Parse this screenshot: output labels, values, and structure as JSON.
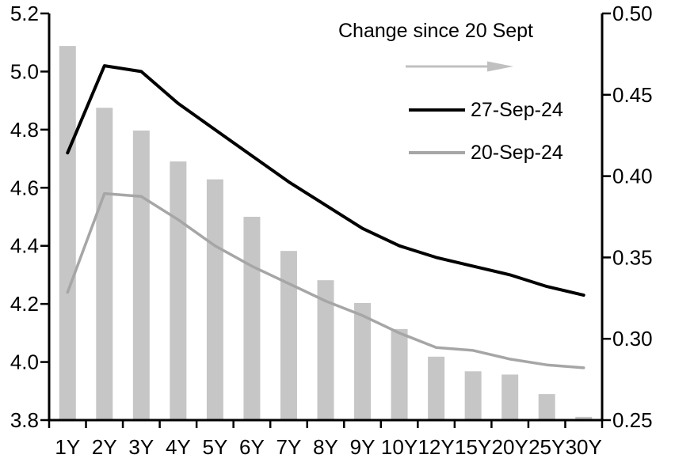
{
  "chart_data": {
    "type": "combo",
    "description": "Yield curve levels (lines, left axis, %) and change since 20 Sept (bars, right axis)",
    "categories": [
      "1Y",
      "2Y",
      "3Y",
      "4Y",
      "5Y",
      "6Y",
      "7Y",
      "8Y",
      "9Y",
      "10Y",
      "12Y",
      "15Y",
      "20Y",
      "25Y",
      "30Y"
    ],
    "series": [
      {
        "name": "27-Sep-24",
        "type": "line",
        "axis": "left",
        "color": "#000000",
        "values": [
          4.72,
          5.02,
          5.0,
          4.89,
          4.8,
          4.71,
          4.62,
          4.54,
          4.46,
          4.4,
          4.36,
          4.33,
          4.3,
          4.26,
          4.23
        ]
      },
      {
        "name": "20-Sep-24",
        "type": "line",
        "axis": "left",
        "color": "#A6A6A6",
        "values": [
          4.24,
          4.58,
          4.57,
          4.49,
          4.4,
          4.33,
          4.27,
          4.21,
          4.16,
          4.1,
          4.05,
          4.04,
          4.01,
          3.99,
          3.98
        ]
      },
      {
        "name": "Change since 20 Sept",
        "type": "bar",
        "axis": "right",
        "color": "#C6C6C6",
        "values": [
          0.48,
          0.442,
          0.428,
          0.409,
          0.398,
          0.375,
          0.354,
          0.336,
          0.322,
          0.306,
          0.289,
          0.28,
          0.278,
          0.266,
          0.252
        ]
      }
    ],
    "left_axis": {
      "min": 3.8,
      "max": 5.2,
      "tick_step": 0.2,
      "tick_labels": [
        "5.2",
        "5.0",
        "4.8",
        "4.6",
        "4.4",
        "4.2",
        "4.0",
        "3.8"
      ]
    },
    "right_axis": {
      "min": 0.25,
      "max": 0.5,
      "tick_step": 0.05,
      "tick_labels": [
        "0.50",
        "0.45",
        "0.40",
        "0.35",
        "0.30",
        "0.25"
      ]
    },
    "legend": {
      "title": "Change since 20 Sept",
      "arrow_icon": "right-arrow",
      "items": [
        "27-Sep-24",
        "20-Sep-24"
      ],
      "position": "top-center-inside"
    },
    "grid": false
  },
  "colors": {
    "background": "#FFFFFF",
    "axis": "#000000",
    "text": "#000000",
    "line_27_sep": "#000000",
    "line_20_sep": "#A6A6A6",
    "bar_fill": "#C6C6C6",
    "arrow": "#C0C0C0"
  }
}
